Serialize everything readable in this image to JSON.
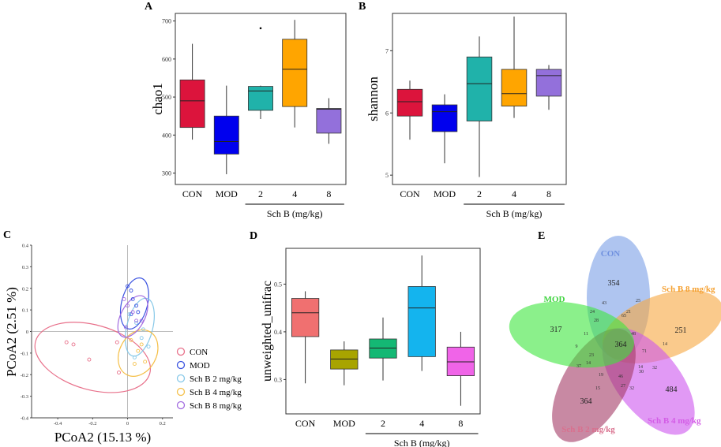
{
  "colors": {
    "CON": "#dc143c",
    "MOD": "#0000ee",
    "SchB2": "#20b2aa",
    "SchB4": "#ffa500",
    "SchB8": "#9370db",
    "D_CON": "#f07070",
    "D_MOD": "#a8a400",
    "D_SchB2": "#14b874",
    "D_SchB4": "#14b4ee",
    "D_SchB8": "#f064e8",
    "V_CON": "#7a9ee6",
    "V_MOD": "#3de63d",
    "V_SchB8": "#f7a640",
    "V_SchB4": "#cd55ee",
    "V_SchB2": "#a43a65",
    "label_CON": "#6f90df",
    "label_MOD": "#3fd43f",
    "label_SchB8": "#f5a030",
    "label_SchB4": "#d35ce6",
    "label_SchB2": "#d9708e"
  },
  "chart_data": [
    {
      "panel": "A",
      "type": "box",
      "categories": [
        "CON",
        "MOD",
        "2",
        "4",
        "8"
      ],
      "ylabel": "chao1",
      "xlabel": "Sch B (mg/kg)",
      "ylim": [
        270,
        720
      ],
      "yticks": [
        300,
        400,
        500,
        600,
        700
      ],
      "boxes": [
        {
          "min": 388,
          "q1": 420,
          "median": 490,
          "q3": 545,
          "max": 640
        },
        {
          "min": 297,
          "q1": 350,
          "median": 383,
          "q3": 450,
          "max": 530
        },
        {
          "min": 442,
          "q1": 465,
          "median": 516,
          "q3": 528,
          "max": 530
        },
        {
          "min": 420,
          "q1": 475,
          "median": 573,
          "q3": 652,
          "max": 703
        },
        {
          "min": 377,
          "q1": 405,
          "median": 468,
          "q3": 470,
          "max": 497
        }
      ],
      "outliers": [
        {
          "category": "2",
          "value": 681
        }
      ]
    },
    {
      "panel": "B",
      "type": "box",
      "categories": [
        "CON",
        "MOD",
        "2",
        "4",
        "8"
      ],
      "ylabel": "shannon",
      "xlabel": "Sch B (mg/kg)",
      "ylim": [
        4.85,
        7.6
      ],
      "yticks": [
        5,
        6,
        7
      ],
      "boxes": [
        {
          "min": 5.57,
          "q1": 5.95,
          "median": 6.18,
          "q3": 6.38,
          "max": 6.52
        },
        {
          "min": 5.19,
          "q1": 5.7,
          "median": 6.02,
          "q3": 6.13,
          "max": 6.3
        },
        {
          "min": 4.97,
          "q1": 5.87,
          "median": 6.47,
          "q3": 6.9,
          "max": 7.23
        },
        {
          "min": 5.92,
          "q1": 6.11,
          "median": 6.31,
          "q3": 6.7,
          "max": 7.55
        },
        {
          "min": 6.05,
          "q1": 6.27,
          "median": 6.6,
          "q3": 6.7,
          "max": 6.77
        }
      ],
      "outliers": []
    },
    {
      "panel": "C",
      "type": "scatter",
      "xlabel": "PCoA2 (15.13 %)",
      "ylabel": "PCoA2 (2.51 %)",
      "xlim": [
        -0.55,
        0.26
      ],
      "ylim": [
        -0.4,
        0.4
      ],
      "xticks": [
        -0.4,
        -0.2,
        0.0,
        0.2
      ],
      "yticks": [
        -0.4,
        -0.3,
        -0.2,
        -0.1,
        0.0,
        0.1,
        0.2,
        0.3,
        0.4
      ],
      "legend": [
        "CON",
        "MOD",
        "Sch B 2 mg/kg",
        "Sch B 4 mg/kg",
        "Sch B 8 mg/kg"
      ],
      "series": [
        {
          "name": "CON",
          "x": [
            -0.35,
            -0.31,
            -0.22,
            -0.05,
            -0.06
          ],
          "y": [
            -0.05,
            -0.06,
            -0.13,
            -0.19,
            -0.05
          ]
        },
        {
          "name": "MOD",
          "x": [
            0.0,
            0.02,
            0.03,
            0.05,
            0.06,
            0.02
          ],
          "y": [
            0.21,
            0.19,
            0.15,
            0.12,
            0.09,
            0.08
          ]
        },
        {
          "name": "Sch B 2 mg/kg",
          "x": [
            0.05,
            0.09,
            0.08,
            0.12,
            0.04,
            0.01
          ],
          "y": [
            0.04,
            0.01,
            -0.03,
            -0.07,
            -0.12,
            0.08
          ]
        },
        {
          "name": "Sch B 4 mg/kg",
          "x": [
            0.02,
            0.06,
            0.1,
            0.04,
            0.08
          ],
          "y": [
            -0.04,
            -0.09,
            -0.14,
            -0.15,
            -0.06
          ]
        },
        {
          "name": "Sch B 8 mg/kg",
          "x": [
            -0.02,
            0.0,
            0.03,
            0.05,
            0.08,
            -0.01
          ],
          "y": [
            0.15,
            0.12,
            0.09,
            0.05,
            0.05,
            0.02
          ]
        }
      ],
      "ellipses": [
        {
          "name": "CON",
          "center": [
            -0.2,
            -0.12
          ],
          "rx": 0.34,
          "ry": 0.15,
          "angle_deg": 16
        },
        {
          "name": "MOD",
          "center": [
            0.04,
            0.13
          ],
          "rx": 0.15,
          "ry": 0.06,
          "angle_deg": -76
        },
        {
          "name": "Sch B 2 mg/kg",
          "center": [
            0.07,
            0.02
          ],
          "rx": 0.17,
          "ry": 0.06,
          "angle_deg": -76
        },
        {
          "name": "Sch B 4 mg/kg",
          "center": [
            0.06,
            -0.1
          ],
          "rx": 0.14,
          "ry": 0.085,
          "angle_deg": -62
        },
        {
          "name": "Sch B 8 mg/kg",
          "center": [
            0.03,
            0.07
          ],
          "rx": 0.13,
          "ry": 0.055,
          "angle_deg": -62
        }
      ]
    },
    {
      "panel": "D",
      "type": "box",
      "categories": [
        "CON",
        "MOD",
        "2",
        "4",
        "8"
      ],
      "ylabel": "unweighted_unifrac",
      "xlabel": "Sch B (mg/kg)",
      "ylim": [
        0.228,
        0.575
      ],
      "yticks": [
        0.3,
        0.4,
        0.5
      ],
      "boxes": [
        {
          "min": 0.292,
          "q1": 0.39,
          "median": 0.44,
          "q3": 0.47,
          "max": 0.485
        },
        {
          "min": 0.288,
          "q1": 0.322,
          "median": 0.343,
          "q3": 0.362,
          "max": 0.38
        },
        {
          "min": 0.298,
          "q1": 0.345,
          "median": 0.366,
          "q3": 0.385,
          "max": 0.43
        },
        {
          "min": 0.318,
          "q1": 0.348,
          "median": 0.45,
          "q3": 0.495,
          "max": 0.56
        },
        {
          "min": 0.245,
          "q1": 0.308,
          "median": 0.337,
          "q3": 0.368,
          "max": 0.4
        }
      ],
      "outliers": []
    },
    {
      "panel": "E",
      "type": "venn",
      "sets": [
        "CON",
        "Sch B 8 mg/kg",
        "Sch B 4 mg/kg",
        "Sch B 2 mg/kg",
        "MOD"
      ],
      "unique": {
        "CON": "354",
        "Sch B 8 mg/kg": "251",
        "Sch B 4 mg/kg": "484",
        "Sch B 2 mg/kg": "364",
        "MOD": "317"
      },
      "core": "364",
      "regions": [
        "43",
        "24",
        "25",
        "21",
        "28",
        "65",
        "48",
        "14",
        "11",
        "9",
        "71",
        "14",
        "23",
        "37",
        "19",
        "46",
        "30",
        "32",
        "15",
        "27",
        "32",
        "14"
      ]
    }
  ],
  "panels": {
    "A": {
      "letter": "A"
    },
    "B": {
      "letter": "B"
    },
    "C": {
      "letter": "C"
    },
    "D": {
      "letter": "D"
    },
    "E": {
      "letter": "E"
    }
  }
}
